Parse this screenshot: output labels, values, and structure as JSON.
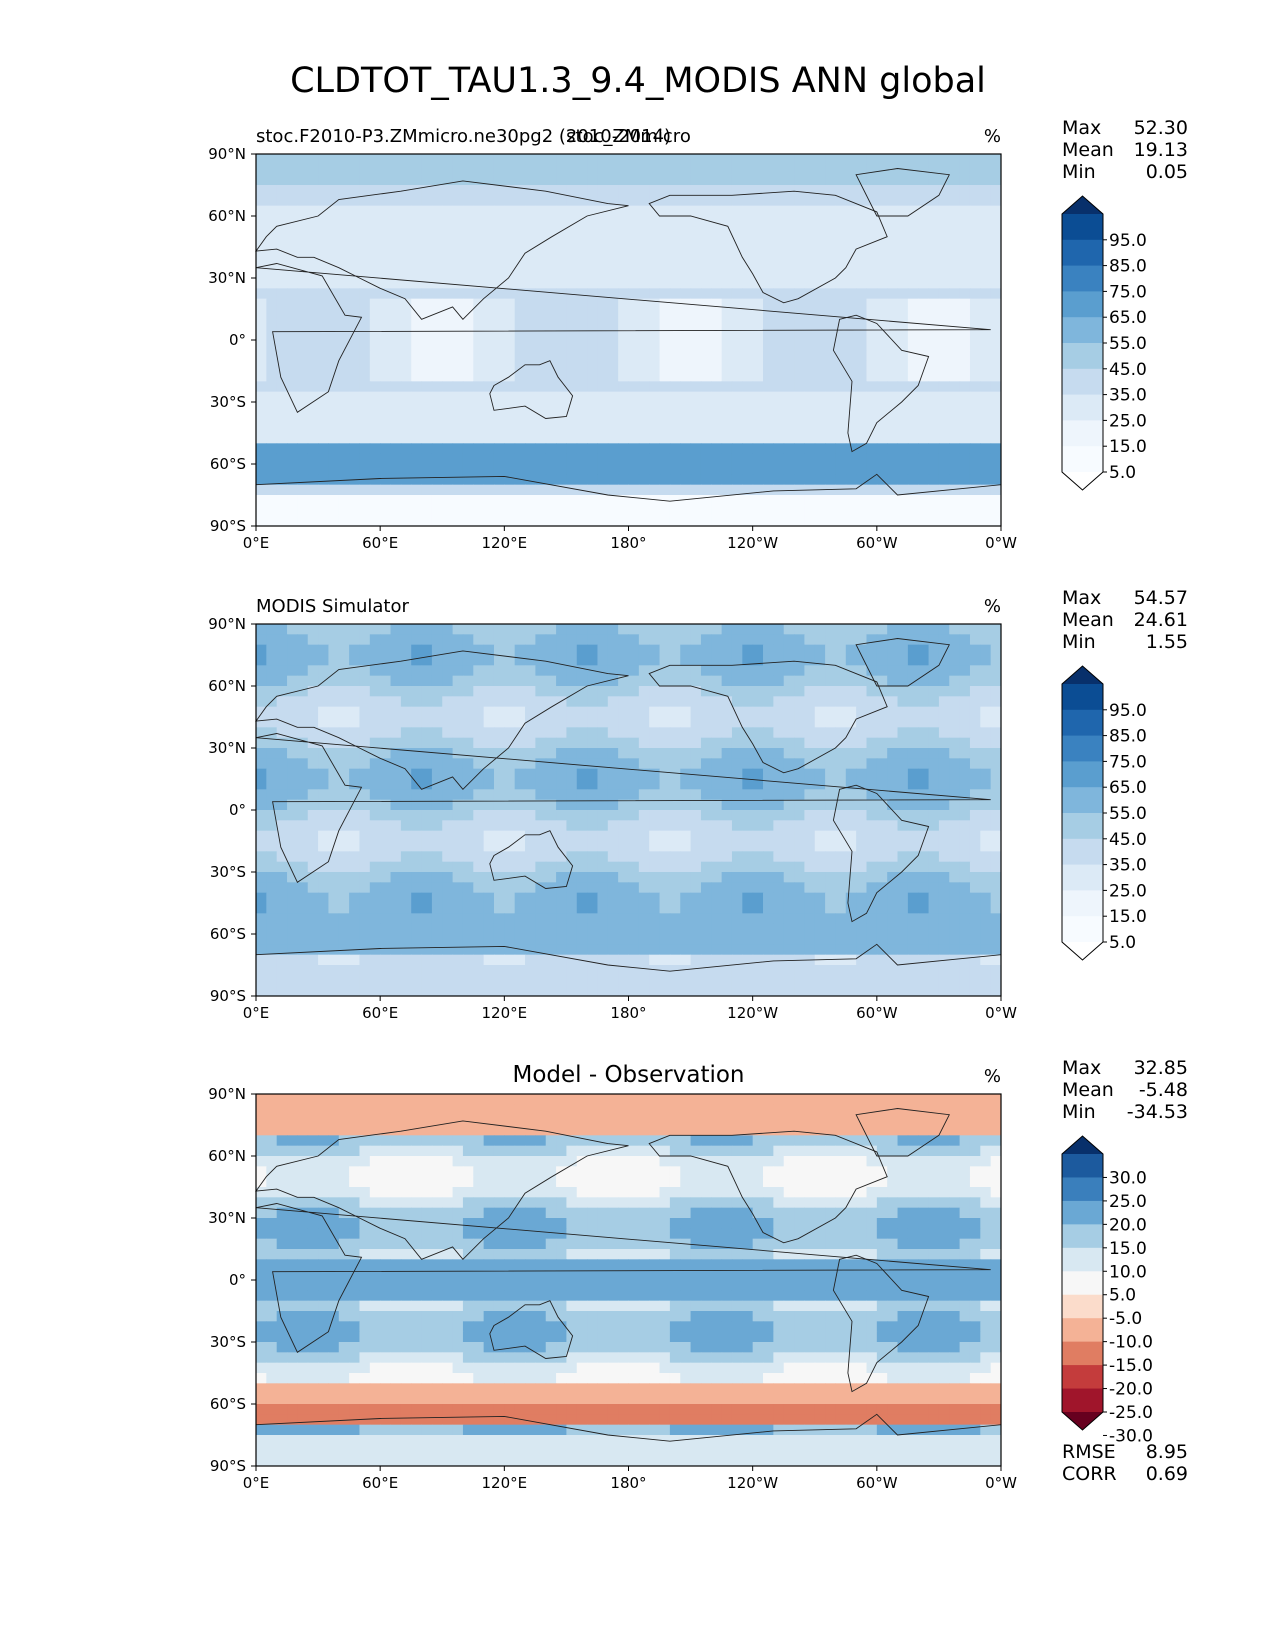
{
  "figure": {
    "title": "CLDTOT_TAU1.3_9.4_MODIS ANN global"
  },
  "chart_data": [
    {
      "type": "heatmap",
      "panel": "test",
      "title_left": "stoc.F2010-P3.ZMmicro.ne30pg2 (2010-2014)",
      "title_center": "stoc_ZMmicro",
      "title_right": "%",
      "x_ticks": [
        "0°E",
        "60°E",
        "120°E",
        "180°",
        "120°W",
        "60°W",
        "0°W"
      ],
      "y_ticks": [
        "90°N",
        "60°N",
        "30°N",
        "0°",
        "30°S",
        "60°S",
        "90°S"
      ],
      "xlim": [
        0,
        360
      ],
      "ylim": [
        -90,
        90
      ],
      "stats": [
        {
          "label": "Max",
          "value": "52.30"
        },
        {
          "label": "Mean",
          "value": "19.13"
        },
        {
          "label": "Min",
          "value": "0.05"
        }
      ],
      "colorbar": {
        "levels": [
          "95.0",
          "85.0",
          "75.0",
          "65.0",
          "55.0",
          "45.0",
          "35.0",
          "25.0",
          "15.0",
          "5.0"
        ],
        "colors": [
          "#08306b",
          "#0b4d94",
          "#1f66ad",
          "#3a82c0",
          "#5a9ecf",
          "#7fb6dc",
          "#a6cde4",
          "#c6dbef",
          "#dceaf6",
          "#eef5fc",
          "#f7fbff",
          "#ffffff"
        ]
      }
    },
    {
      "type": "heatmap",
      "panel": "reference",
      "title_left": "MODIS Simulator",
      "title_center": "",
      "title_right": "%",
      "x_ticks": [
        "0°E",
        "60°E",
        "120°E",
        "180°",
        "120°W",
        "60°W",
        "0°W"
      ],
      "y_ticks": [
        "90°N",
        "60°N",
        "30°N",
        "0°",
        "30°S",
        "60°S",
        "90°S"
      ],
      "xlim": [
        0,
        360
      ],
      "ylim": [
        -90,
        90
      ],
      "stats": [
        {
          "label": "Max",
          "value": "54.57"
        },
        {
          "label": "Mean",
          "value": "24.61"
        },
        {
          "label": "Min",
          "value": "1.55"
        }
      ],
      "colorbar": {
        "levels": [
          "95.0",
          "85.0",
          "75.0",
          "65.0",
          "55.0",
          "45.0",
          "35.0",
          "25.0",
          "15.0",
          "5.0"
        ],
        "colors": [
          "#08306b",
          "#0b4d94",
          "#1f66ad",
          "#3a82c0",
          "#5a9ecf",
          "#7fb6dc",
          "#a6cde4",
          "#c6dbef",
          "#dceaf6",
          "#eef5fc",
          "#f7fbff",
          "#ffffff"
        ]
      }
    },
    {
      "type": "heatmap",
      "panel": "difference",
      "title_left": "",
      "title_center": "Model - Observation",
      "title_right": "%",
      "x_ticks": [
        "0°E",
        "60°E",
        "120°E",
        "180°",
        "120°W",
        "60°W",
        "0°W"
      ],
      "y_ticks": [
        "90°N",
        "60°N",
        "30°N",
        "0°",
        "30°S",
        "60°S",
        "90°S"
      ],
      "xlim": [
        0,
        360
      ],
      "ylim": [
        -90,
        90
      ],
      "stats": [
        {
          "label": "Max",
          "value": "32.85"
        },
        {
          "label": "Mean",
          "value": "-5.48"
        },
        {
          "label": "Min",
          "value": "-34.53"
        }
      ],
      "bottom_stats": [
        {
          "label": "RMSE",
          "value": "8.95"
        },
        {
          "label": "CORR",
          "value": "0.69"
        }
      ],
      "colorbar": {
        "levels": [
          "30.0",
          "25.0",
          "20.0",
          "15.0",
          "10.0",
          "5.0",
          "-5.0",
          "-10.0",
          "-15.0",
          "-20.0",
          "-25.0",
          "-30.0"
        ],
        "colors": [
          "#08306b",
          "#1c5a9e",
          "#3a7fbc",
          "#6aa8d4",
          "#a6cde4",
          "#d8e8f2",
          "#f7f7f7",
          "#fbdccb",
          "#f4b296",
          "#e07d62",
          "#c43c3c",
          "#a0152b",
          "#67001f"
        ]
      }
    }
  ]
}
